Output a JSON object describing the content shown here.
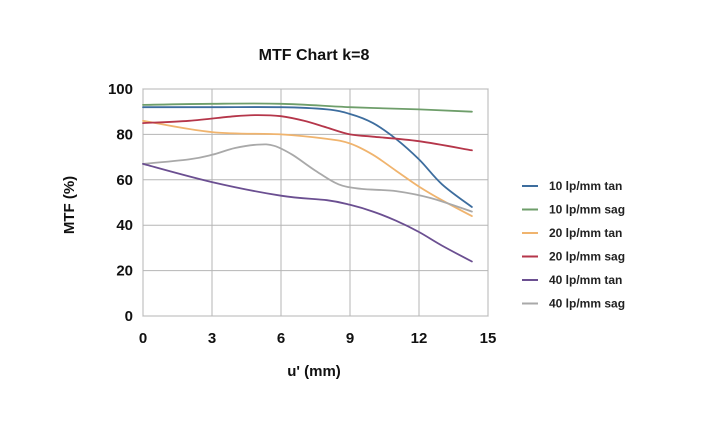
{
  "chart_data": {
    "type": "line",
    "title": "MTF Chart k=8",
    "xlabel": "u' (mm)",
    "ylabel": "MTF (%)",
    "xlim": [
      0,
      15
    ],
    "ylim": [
      0,
      100
    ],
    "xticks": [
      0,
      3,
      6,
      9,
      12,
      15
    ],
    "yticks": [
      0,
      20,
      40,
      60,
      80,
      100
    ],
    "grid": true,
    "legend_position": "right",
    "series": [
      {
        "name": "10 lp/mm tan",
        "color": "#3d6d9e",
        "x": [
          0,
          3,
          6,
          8,
          9,
          10,
          11,
          12,
          13,
          14.3
        ],
        "y": [
          92,
          92,
          92,
          91,
          89,
          85,
          78,
          69,
          58,
          48
        ]
      },
      {
        "name": "10 lp/mm sag",
        "color": "#6e9e6a",
        "x": [
          0,
          3,
          6,
          9,
          12,
          14.3
        ],
        "y": [
          93,
          93.5,
          93.5,
          92,
          91,
          90
        ]
      },
      {
        "name": "20 lp/mm tan",
        "color": "#f0b46e",
        "x": [
          0,
          3,
          6,
          8,
          9,
          10,
          11,
          12,
          13,
          14.3
        ],
        "y": [
          86,
          81,
          80,
          78,
          76,
          71,
          64,
          57,
          51,
          44
        ]
      },
      {
        "name": "20 lp/mm sag",
        "color": "#b5364a",
        "x": [
          0,
          2,
          4,
          5,
          6,
          7,
          8,
          9,
          10,
          12,
          14.3
        ],
        "y": [
          85,
          86,
          88,
          88.5,
          88,
          86,
          83,
          80,
          79,
          77,
          73
        ]
      },
      {
        "name": "40 lp/mm tan",
        "color": "#6b4f91",
        "x": [
          0,
          3,
          6,
          8,
          9,
          10,
          11,
          12,
          13,
          14.3
        ],
        "y": [
          67,
          59,
          53,
          51,
          49,
          46,
          42,
          37,
          31,
          24
        ]
      },
      {
        "name": "40 lp/mm sag",
        "color": "#a9a9a9",
        "x": [
          0,
          2,
          3,
          4,
          5,
          5.7,
          6.5,
          7.5,
          8.5,
          9.5,
          11,
          12.5,
          14.3
        ],
        "y": [
          67,
          69,
          71,
          74,
          75.5,
          75,
          71,
          64,
          58,
          56,
          55,
          52,
          46
        ]
      }
    ]
  }
}
